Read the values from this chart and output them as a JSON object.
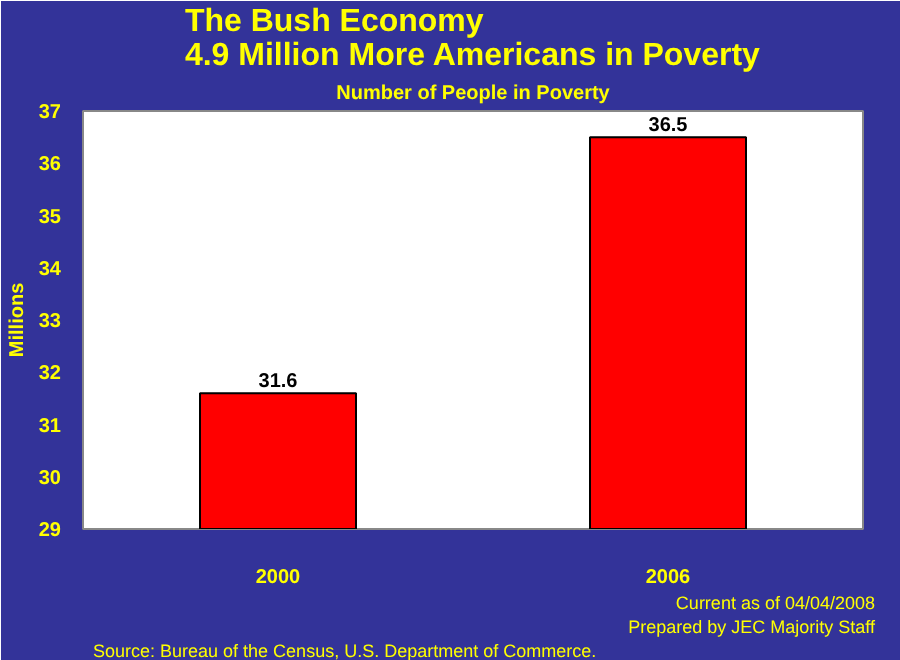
{
  "chart_data": {
    "type": "bar",
    "title": "The Bush Economy\n4.9 Million More Americans in Poverty",
    "subtitle": "Number of People in Poverty",
    "ylabel": "Millions",
    "categories": [
      "2000",
      "2006"
    ],
    "values": [
      31.6,
      36.5
    ],
    "color": "#ff0000",
    "ylim": [
      29,
      37
    ],
    "yticks": [
      29,
      30,
      31,
      32,
      33,
      34,
      35,
      36,
      37
    ],
    "data_labels": true,
    "grid": false,
    "annotations": [
      "Source: Bureau of the Census, U.S. Department of Commerce.",
      "Current as of 04/04/2008\nPrepared by JEC Majority Staff"
    ]
  }
}
